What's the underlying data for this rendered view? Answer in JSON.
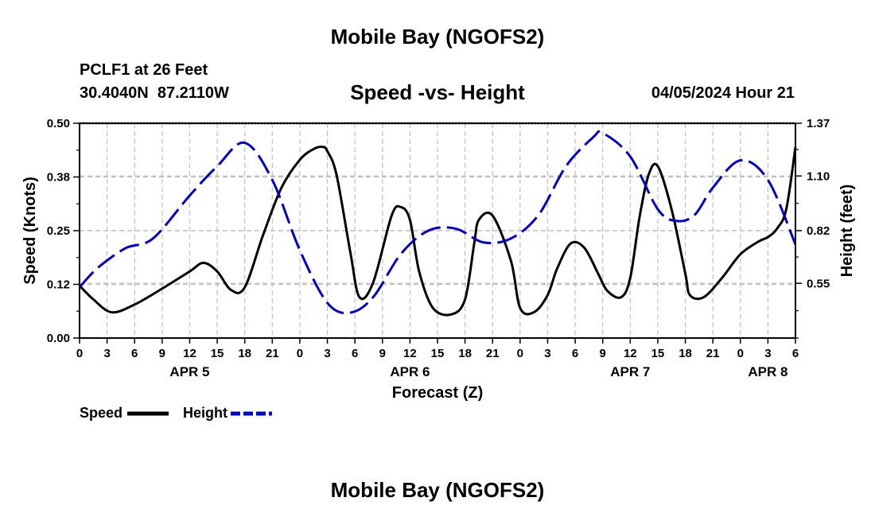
{
  "header": {
    "title_top": "Mobile Bay (NGOFS2)",
    "station": "PCLF1 at 26 Feet",
    "coords": "30.4040N  87.2110W",
    "subtitle": "Speed -vs- Height",
    "datetime": "04/05/2024 Hour 21",
    "title_bottom": "Mobile Bay (NGOFS2)"
  },
  "chart_data": {
    "type": "line",
    "title": "Speed -vs- Height",
    "xlabel": "Forecast (Z)",
    "ylabel": "Speed (Knots)",
    "y2label": "Height (feet)",
    "xlim_hours": [
      0,
      78
    ],
    "ylim": [
      0,
      0.5
    ],
    "y2lim": [
      0.27,
      1.37
    ],
    "grid": true,
    "x_tick_labels": [
      "0",
      "3",
      "6",
      "9",
      "12",
      "15",
      "18",
      "21",
      "0",
      "3",
      "6",
      "9",
      "12",
      "15",
      "18",
      "21",
      "0",
      "3",
      "6",
      "9",
      "12",
      "15",
      "18",
      "21",
      "0",
      "3",
      "6"
    ],
    "date_labels": [
      {
        "label": "APR 5",
        "hour": 12
      },
      {
        "label": "APR 6",
        "hour": 36
      },
      {
        "label": "APR 7",
        "hour": 60
      },
      {
        "label": "APR 8",
        "hour": 75
      }
    ],
    "y_ticks": [
      "0.00",
      "0.12",
      "0.25",
      "0.38",
      "0.50"
    ],
    "y_tick_values": [
      0,
      0.125,
      0.25,
      0.375,
      0.5
    ],
    "y2_ticks": [
      "0.55",
      "0.82",
      "1.10",
      "1.37"
    ],
    "y2_tick_values": [
      0.55,
      0.82,
      1.1,
      1.37
    ],
    "legend": [
      {
        "name": "Speed",
        "color": "#000000",
        "style": "solid"
      },
      {
        "name": "Height",
        "color": "#0000cc",
        "style": "dashed"
      }
    ],
    "series": [
      {
        "name": "Speed",
        "axis": "left",
        "color": "#000000",
        "x": [
          0,
          1.5,
          3.5,
          6,
          9,
          12,
          13.5,
          15,
          16.5,
          18,
          20,
          22,
          24,
          25.5,
          26.5,
          27,
          28,
          29.5,
          30.5,
          32,
          34,
          35,
          36,
          37,
          38.5,
          40.5,
          42,
          43,
          43.5,
          45,
          47,
          48,
          49.5,
          51,
          52,
          53.5,
          55,
          56.5,
          57.5,
          59,
          60,
          61,
          62,
          63,
          64.5,
          66,
          66.5,
          68,
          70,
          72,
          74,
          75,
          76,
          77,
          78
        ],
        "values": [
          0.122,
          0.09,
          0.06,
          0.078,
          0.115,
          0.155,
          0.175,
          0.155,
          0.112,
          0.118,
          0.24,
          0.35,
          0.415,
          0.44,
          0.445,
          0.435,
          0.38,
          0.2,
          0.095,
          0.13,
          0.285,
          0.305,
          0.275,
          0.155,
          0.07,
          0.055,
          0.09,
          0.22,
          0.275,
          0.285,
          0.18,
          0.07,
          0.06,
          0.1,
          0.16,
          0.22,
          0.21,
          0.15,
          0.11,
          0.095,
          0.14,
          0.28,
          0.38,
          0.4,
          0.3,
          0.15,
          0.1,
          0.095,
          0.14,
          0.195,
          0.225,
          0.235,
          0.255,
          0.3,
          0.445
        ]
      },
      {
        "name": "Height",
        "axis": "right",
        "color": "#0000cc",
        "x": [
          0,
          2,
          5,
          8,
          12,
          15,
          18,
          21,
          24,
          27,
          29.5,
          32,
          35,
          38,
          41,
          44,
          47,
          50,
          53,
          56,
          57,
          60,
          63,
          65,
          67,
          69,
          72,
          75,
          78
        ],
        "values": [
          0.53,
          0.63,
          0.73,
          0.78,
          1.0,
          1.15,
          1.27,
          1.08,
          0.72,
          0.45,
          0.4,
          0.48,
          0.7,
          0.82,
          0.83,
          0.76,
          0.78,
          0.9,
          1.15,
          1.3,
          1.32,
          1.2,
          0.93,
          0.87,
          0.9,
          1.04,
          1.18,
          1.08,
          0.75
        ]
      }
    ]
  }
}
